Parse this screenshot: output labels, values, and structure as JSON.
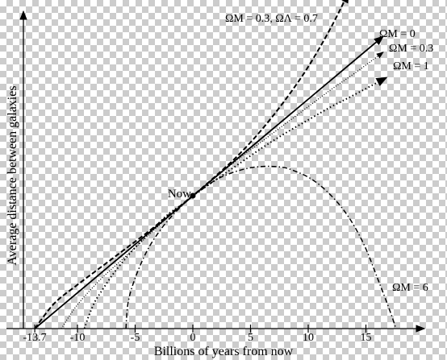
{
  "chart_data": {
    "type": "line",
    "xlabel": "Billions of years from now",
    "ylabel": "Average distance between galaxies",
    "xlim": [
      -15,
      19
    ],
    "x_ticks": [
      "-13.7",
      "-10",
      "-5",
      "0",
      "5",
      "10",
      "15"
    ],
    "x_tick_values": [
      -13.7,
      -10,
      -5,
      0,
      5,
      10,
      15
    ],
    "now": {
      "x": 0,
      "y": 1.0,
      "label": "Now"
    },
    "series": [
      {
        "label": "ΩM = 0.3, ΩΛ = 0.7",
        "style": "dashed",
        "x": [
          -13.7,
          -12,
          -10,
          -8,
          -6,
          -4,
          -2,
          0,
          2,
          4,
          6,
          8,
          10,
          12,
          13.5
        ],
        "y": [
          0.0,
          0.19,
          0.33,
          0.46,
          0.59,
          0.72,
          0.86,
          1.0,
          1.15,
          1.31,
          1.5,
          1.72,
          1.97,
          2.27,
          2.53
        ]
      },
      {
        "label": "ΩM = 0",
        "style": "solid",
        "x": [
          -13.7,
          16.5
        ],
        "y": [
          0.0,
          2.2
        ]
      },
      {
        "label": "ΩM = 0.3",
        "style": "dotted-fine",
        "x": [
          -11.4,
          -10,
          -8,
          -6,
          -4,
          -2,
          0,
          2,
          4,
          6,
          8,
          10,
          12,
          14,
          16.5
        ],
        "y": [
          0.0,
          0.18,
          0.37,
          0.53,
          0.69,
          0.85,
          1.0,
          1.14,
          1.28,
          1.41,
          1.54,
          1.67,
          1.8,
          1.92,
          2.08
        ]
      },
      {
        "label": "ΩM = 1",
        "style": "dotted",
        "x": [
          -9.4,
          -9.0,
          -8.5,
          -8,
          -7,
          -6,
          -5,
          -4,
          -3,
          -2,
          -1,
          0,
          2,
          4,
          6,
          8,
          10,
          12,
          14,
          16.8
        ],
        "y": [
          0.0,
          0.1,
          0.2,
          0.27,
          0.4,
          0.51,
          0.61,
          0.7,
          0.79,
          0.87,
          0.93,
          1.0,
          1.12,
          1.24,
          1.36,
          1.47,
          1.57,
          1.67,
          1.76,
          1.89
        ]
      },
      {
        "label": "ΩM = 6",
        "style": "dash-dot",
        "x": [
          -5.8,
          -5.6,
          -5,
          -4,
          -3,
          -2,
          -1,
          0,
          1,
          2,
          3,
          4,
          5,
          6,
          7,
          8,
          9,
          10,
          11,
          12,
          13,
          14,
          15,
          16,
          16.8,
          17.3,
          17.6
        ],
        "y": [
          0.0,
          0.2,
          0.38,
          0.58,
          0.72,
          0.83,
          0.92,
          1.0,
          1.06,
          1.12,
          1.16,
          1.19,
          1.21,
          1.22,
          1.22,
          1.21,
          1.18,
          1.14,
          1.08,
          1.0,
          0.9,
          0.77,
          0.6,
          0.38,
          0.2,
          0.08,
          0.0
        ]
      }
    ],
    "legend": "labels placed next to curves"
  }
}
